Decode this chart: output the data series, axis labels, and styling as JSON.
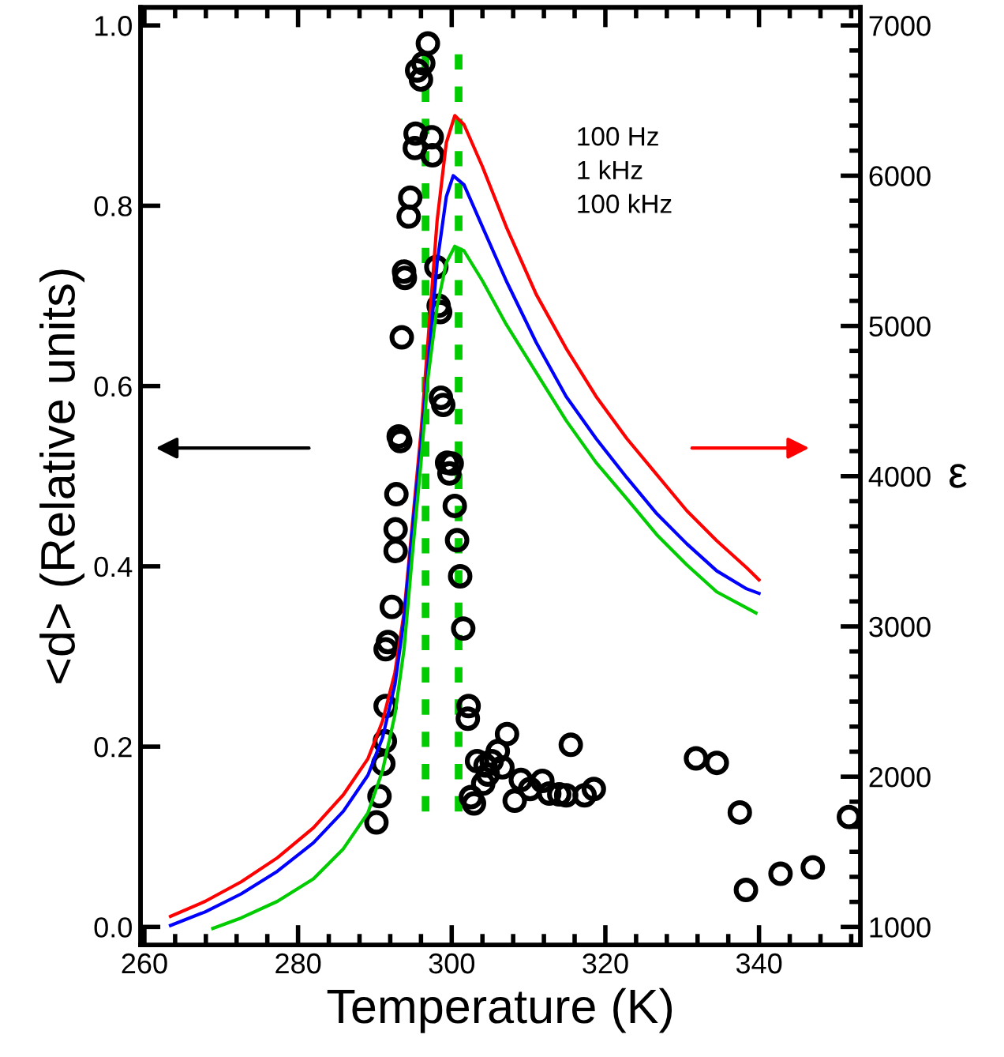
{
  "chart_data": {
    "type": "scatter",
    "xlabel": "Temperature (K)",
    "ylabel": "<d> (Relative units)",
    "y2label": "ε",
    "annotations": [
      "100 Hz",
      "1 kHz",
      "100 kHz"
    ],
    "xlim": [
      259.5,
      353.2
    ],
    "xticks": [
      260,
      280,
      300,
      320,
      340
    ],
    "ylim": [
      -0.02,
      1.02
    ],
    "yticks": [
      {
        "value": 0,
        "label": "0.0"
      },
      {
        "value": 0.2,
        "label": "0.2"
      },
      {
        "value": 0.4,
        "label": "0.4"
      },
      {
        "value": 0.6,
        "label": "0.6"
      },
      {
        "value": 0.8,
        "label": "0.8"
      },
      {
        "value": 1.0,
        "label": "1.0"
      }
    ],
    "y2lim": [
      880,
      7120
    ],
    "y2ticks": [
      1000,
      2000,
      3000,
      4000,
      5000,
      6000,
      7000
    ],
    "grid": false,
    "legend": false,
    "series": [
      {
        "color": "#000000",
        "marker": "circle",
        "x": [
          296.9,
          296.3,
          295.5,
          296.0,
          295.3,
          297.4,
          295.2,
          297.5,
          294.6,
          294.4,
          298.0,
          293.8,
          293.9,
          298.3,
          298.5,
          293.5,
          298.6,
          298.9,
          293.1,
          293.3,
          299.4,
          300.0,
          299.7,
          292.8,
          300.4,
          292.7,
          292.7,
          300.7,
          301.1,
          292.2,
          301.5,
          291.7,
          291.4,
          291.4,
          302.2,
          302.1,
          291.3,
          291.1,
          290.6,
          290.2,
          307.2,
          303.3,
          306.0,
          304.4,
          305.2,
          306.6,
          304.7,
          304.1,
          302.5,
          302.9,
          309.0,
          308.2,
          310.2,
          311.8,
          312.7,
          314.0,
          314.9,
          315.5,
          317.3,
          318.5,
          331.8,
          334.5,
          337.5,
          338.3,
          342.8,
          347.0,
          351.7
        ],
        "values": [
          0.98,
          0.958,
          0.95,
          0.94,
          0.88,
          0.876,
          0.864,
          0.856,
          0.809,
          0.788,
          0.732,
          0.727,
          0.72,
          0.689,
          0.682,
          0.654,
          0.587,
          0.579,
          0.544,
          0.539,
          0.515,
          0.514,
          0.503,
          0.48,
          0.467,
          0.441,
          0.417,
          0.429,
          0.389,
          0.355,
          0.331,
          0.316,
          0.308,
          0.245,
          0.245,
          0.231,
          0.206,
          0.181,
          0.145,
          0.116,
          0.214,
          0.184,
          0.195,
          0.179,
          0.184,
          0.177,
          0.169,
          0.159,
          0.144,
          0.137,
          0.163,
          0.14,
          0.153,
          0.162,
          0.148,
          0.147,
          0.146,
          0.202,
          0.146,
          0.153,
          0.187,
          0.182,
          0.127,
          0.041,
          0.059,
          0.066,
          0.122
        ]
      },
      {
        "type": "line",
        "color": "#ff0000",
        "axis": "y2",
        "line_style": "solid",
        "x": [
          263.4,
          267.9,
          272.6,
          277.3,
          282.0,
          285.9,
          289.1,
          291.0,
          292.6,
          293.8,
          294.9,
          296.0,
          296.9,
          298.1,
          299.3,
          300.4,
          301.6,
          304.0,
          307.1,
          311.0,
          314.9,
          318.8,
          322.8,
          326.7,
          330.6,
          334.5,
          338.4,
          340.0
        ],
        "values": [
          1070,
          1170,
          1300,
          1460,
          1660,
          1880,
          2120,
          2370,
          2690,
          3090,
          3690,
          4290,
          4890,
          5700,
          6220,
          6400,
          6340,
          6060,
          5660,
          5210,
          4850,
          4530,
          4250,
          4010,
          3770,
          3570,
          3390,
          3310
        ]
      },
      {
        "type": "line",
        "color": "#0000ff",
        "axis": "y2",
        "line_style": "solid",
        "x": [
          263.4,
          267.9,
          272.6,
          277.3,
          282.0,
          285.9,
          289.1,
          291.0,
          292.6,
          293.8,
          294.9,
          296.0,
          296.9,
          298.1,
          299.3,
          300.2,
          301.6,
          304.0,
          307.1,
          311.0,
          314.9,
          318.8,
          322.8,
          326.7,
          330.6,
          334.5,
          338.4,
          340.0
        ],
        "values": [
          1010,
          1100,
          1220,
          1370,
          1560,
          1770,
          2010,
          2260,
          2610,
          3050,
          3650,
          4210,
          4730,
          5420,
          5860,
          6000,
          5940,
          5660,
          5300,
          4890,
          4530,
          4250,
          3990,
          3750,
          3550,
          3370,
          3250,
          3220
        ]
      },
      {
        "type": "line",
        "color": "#00cc00",
        "axis": "y2",
        "line_style": "solid",
        "x": [
          268.9,
          272.6,
          277.3,
          282.0,
          285.9,
          289.1,
          291.0,
          292.6,
          293.8,
          294.9,
          296.0,
          296.9,
          298.1,
          299.3,
          300.4,
          301.6,
          304.0,
          307.1,
          311.0,
          314.9,
          318.8,
          322.8,
          326.7,
          330.6,
          334.5,
          339.6
        ],
        "values": [
          990,
          1060,
          1170,
          1320,
          1520,
          1760,
          2040,
          2410,
          2850,
          3490,
          4090,
          4650,
          5130,
          5420,
          5530,
          5500,
          5300,
          5010,
          4690,
          4370,
          4090,
          3850,
          3610,
          3410,
          3230,
          3090
        ]
      },
      {
        "type": "line",
        "color": "#00cc00",
        "line_style": "dotted",
        "x": [
          296.6,
          296.6
        ],
        "values": [
          0.128,
          0.977
        ]
      },
      {
        "type": "line",
        "color": "#00cc00",
        "line_style": "dotted",
        "x": [
          300.9,
          300.9
        ],
        "values": [
          0.128,
          0.977
        ]
      }
    ]
  }
}
